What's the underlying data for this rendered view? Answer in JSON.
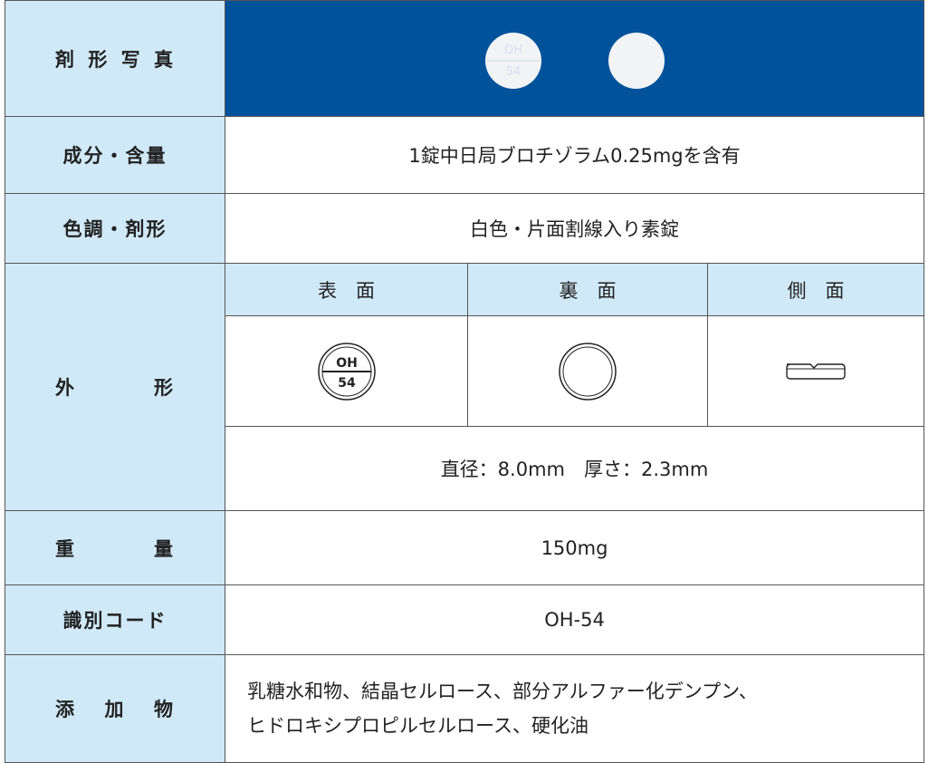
{
  "table": {
    "photo": {
      "label": "剤形写真",
      "imprint": [
        "OH",
        "54"
      ]
    },
    "ingredient": {
      "label": "成分・含量",
      "value": "1錠中日局ブロチゾラム0.25mgを含有"
    },
    "color": {
      "label": "色調・剤形",
      "value": "白色・片面割線入り素錠"
    },
    "appearance": {
      "label": "外形",
      "headers": [
        "表　面",
        "裏　面",
        "側　面"
      ],
      "imprint": [
        "OH",
        "54"
      ],
      "size": "直径：8.0mm　厚さ：2.3mm"
    },
    "weight": {
      "label": "重量",
      "value": "150mg"
    },
    "code": {
      "label": "識別コード",
      "value": "OH-54"
    },
    "additives": {
      "label": "添加物",
      "lines": [
        "乳糖水和物、結晶セルロース、部分アルファー化デンプン、",
        "ヒドロキシプロピルセルロース、硬化油"
      ]
    }
  }
}
